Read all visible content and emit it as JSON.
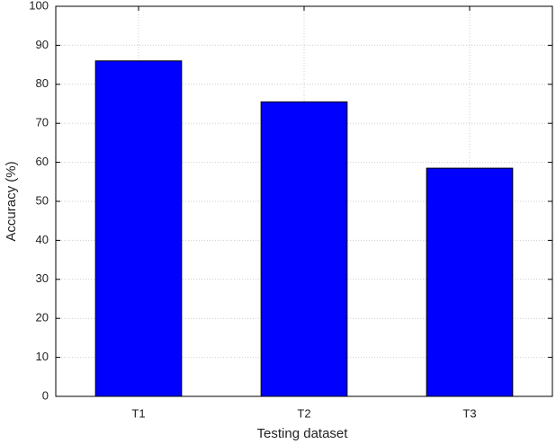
{
  "chart_data": {
    "type": "bar",
    "x_label": "Testing dataset",
    "y_label": "Accuracy (%)",
    "categories": [
      "T1",
      "T2",
      "T3"
    ],
    "values": [
      86,
      75.5,
      58.5
    ],
    "color": "#0000ff",
    "ylim": [
      0,
      100
    ],
    "yticks": [
      0,
      10,
      20,
      30,
      40,
      50,
      60,
      70,
      80,
      90,
      100
    ],
    "grid": true
  }
}
